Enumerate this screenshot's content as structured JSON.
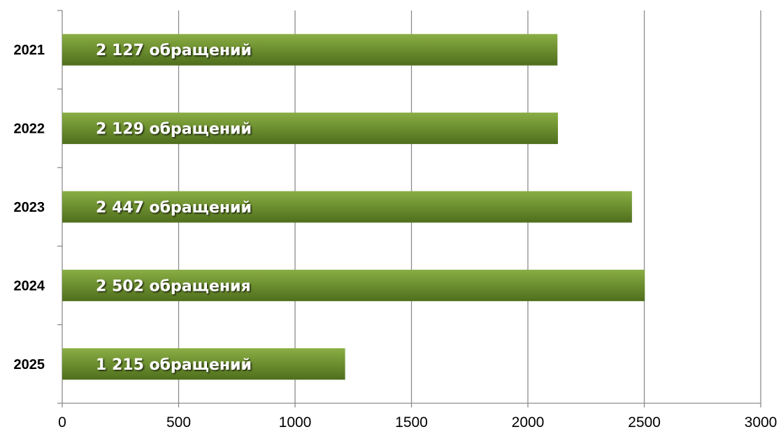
{
  "chart_data": {
    "type": "bar",
    "orientation": "horizontal",
    "categories": [
      "2021",
      "2022",
      "2023",
      "2024",
      "2025"
    ],
    "values": [
      2127,
      2129,
      2447,
      2502,
      1215
    ],
    "data_labels": [
      "2 127 обращений",
      "2 129 обращений",
      "2 447 обращений",
      "2 502 обращения",
      "1 215 обращений"
    ],
    "x_ticks": [
      "0",
      "500",
      "1000",
      "1500",
      "2000",
      "2500",
      "3000"
    ],
    "xlim": [
      0,
      3000
    ],
    "grid": true,
    "title": "",
    "xlabel": "",
    "ylabel": ""
  },
  "colors": {
    "bar_top": "#8aae45",
    "bar_mid": "#6c8e2f",
    "bar_bottom": "#4f6e1d",
    "grid": "#8c8c8c",
    "axis": "#8c8c8c"
  }
}
